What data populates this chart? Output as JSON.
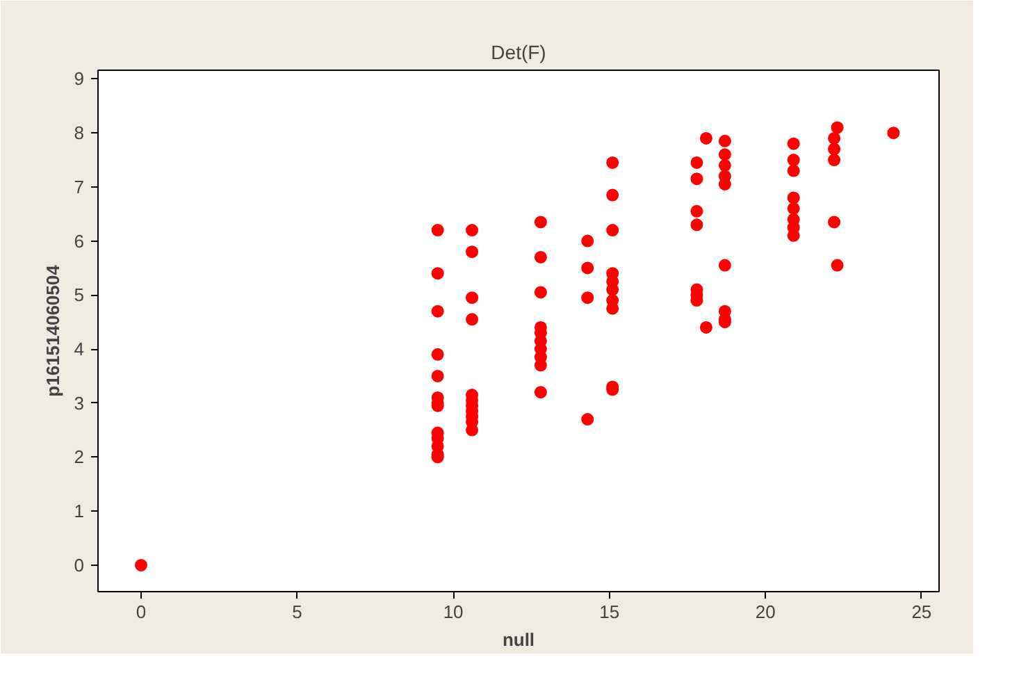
{
  "chart_data": {
    "type": "scatter",
    "title": "Det(F)",
    "xlabel": "null",
    "ylabel": "p161514060504",
    "xlim": [
      -1.38,
      25.56
    ],
    "ylim": [
      -0.49,
      9.16
    ],
    "xticks": [
      0,
      5,
      10,
      15,
      20,
      25
    ],
    "yticks": [
      0,
      1,
      2,
      3,
      4,
      5,
      6,
      7,
      8,
      9
    ],
    "grid": false,
    "marker": "circle",
    "series": [
      {
        "color": "#ff0000",
        "x": [
          0,
          9.5,
          9.5,
          9.5,
          9.5,
          9.5,
          9.5,
          9.5,
          9.5,
          9.5,
          9.5,
          9.5,
          9.5,
          9.5,
          10.6,
          10.6,
          10.6,
          10.6,
          10.6,
          10.6,
          10.6,
          10.6,
          10.6,
          10.6,
          10.6,
          12.8,
          12.8,
          12.8,
          12.8,
          12.8,
          12.8,
          12.8,
          12.8,
          12.8,
          12.8,
          14.3,
          14.3,
          14.3,
          14.3,
          15.1,
          15.1,
          15.1,
          15.1,
          15.1,
          15.1,
          15.1,
          15.1,
          15.1,
          15.1,
          17.8,
          17.8,
          17.8,
          17.8,
          17.8,
          17.8,
          17.8,
          18.1,
          18.1,
          18.7,
          18.7,
          18.7,
          18.7,
          18.7,
          18.7,
          18.7,
          18.7,
          18.7,
          20.9,
          20.9,
          20.9,
          20.9,
          20.9,
          20.9,
          20.9,
          20.9,
          22.3,
          22.2,
          22.2,
          22.2,
          22.2,
          22.3,
          24.1
        ],
        "values": [
          0,
          6.2,
          5.4,
          4.7,
          3.9,
          3.5,
          3.1,
          3.0,
          2.95,
          2.45,
          2.35,
          2.2,
          2.05,
          2.0,
          6.2,
          5.8,
          4.95,
          4.55,
          3.15,
          3.05,
          2.95,
          2.85,
          2.75,
          2.65,
          2.5,
          6.35,
          5.7,
          5.05,
          4.4,
          4.3,
          4.15,
          4.0,
          3.85,
          3.7,
          3.2,
          6.0,
          5.5,
          4.95,
          2.7,
          7.45,
          6.85,
          6.2,
          5.4,
          5.25,
          5.1,
          4.9,
          4.75,
          3.3,
          3.25,
          7.45,
          7.15,
          6.55,
          6.3,
          5.1,
          5.0,
          4.9,
          7.9,
          4.4,
          7.85,
          7.6,
          7.4,
          7.2,
          7.05,
          5.55,
          4.7,
          4.55,
          4.5,
          7.8,
          7.5,
          7.3,
          6.8,
          6.6,
          6.4,
          6.25,
          6.1,
          8.1,
          7.9,
          7.7,
          7.5,
          6.35,
          5.55,
          8.0
        ]
      }
    ]
  }
}
